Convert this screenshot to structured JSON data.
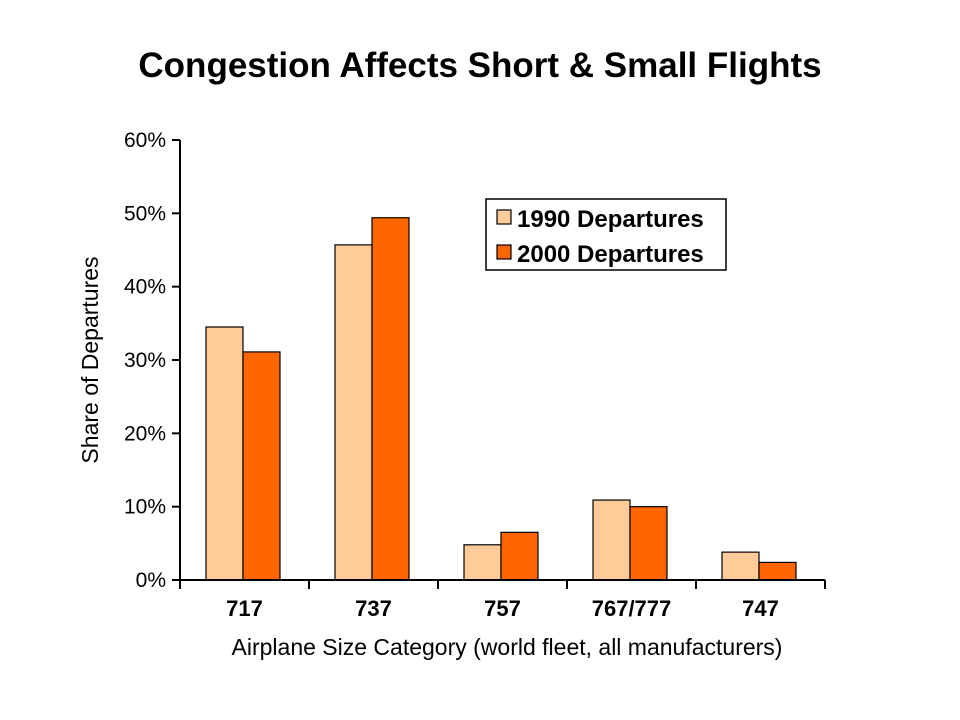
{
  "chart_data": {
    "type": "bar",
    "title": "Congestion Affects Short & Small Flights",
    "xlabel": "Airplane Size Category (world fleet, all manufacturers)",
    "ylabel": "Share of Departures",
    "categories": [
      "717",
      "737",
      "757",
      "767/777",
      "747"
    ],
    "series": [
      {
        "name": "1990 Departures",
        "values": [
          34.5,
          45.7,
          4.8,
          10.9,
          3.8
        ],
        "color": "#FFCC99"
      },
      {
        "name": "2000 Departures",
        "values": [
          31.1,
          49.4,
          6.5,
          10.0,
          2.4
        ],
        "color": "#FF6600"
      }
    ],
    "ylim": [
      0,
      60
    ],
    "yticks": [
      "0%",
      "10%",
      "20%",
      "30%",
      "40%",
      "50%",
      "60%"
    ],
    "grid": false,
    "legend_position": "top-right"
  }
}
